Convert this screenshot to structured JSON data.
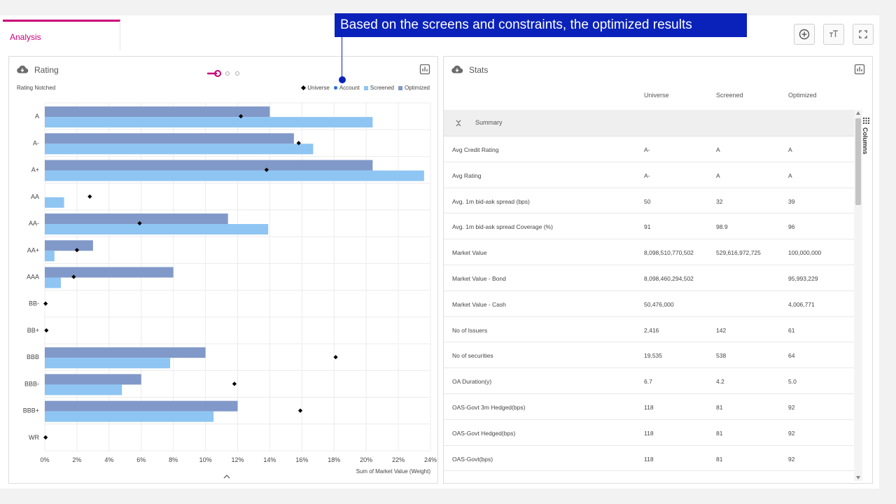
{
  "tab": {
    "label": "Analysis"
  },
  "callout": {
    "text": "Based on the screens and constraints, the optimized results"
  },
  "toolbar": {
    "icons": [
      "plus-circle-icon",
      "text-size-icon",
      "fullscreen-icon"
    ]
  },
  "colors": {
    "accent": "#c8007a",
    "callout": "#0a22b9",
    "optimized": "#8199c9",
    "screened": "#8ec5f3"
  },
  "rating_panel": {
    "title": "Rating",
    "subtitle": "Rating Notched",
    "legend": [
      "Universe",
      "Account",
      "Screened",
      "Optimized"
    ]
  },
  "chart_data": {
    "type": "bar",
    "orientation": "horizontal",
    "categories": [
      "A",
      "A-",
      "A+",
      "AA",
      "AA-",
      "AA+",
      "AAA",
      "BB-",
      "BB+",
      "BBB",
      "BBB-",
      "BBB+",
      "WR"
    ],
    "series": [
      {
        "name": "Optimized",
        "values": [
          14.0,
          15.5,
          20.4,
          0,
          11.4,
          3.0,
          8.0,
          0,
          0,
          10.0,
          6.0,
          12.0,
          0
        ]
      },
      {
        "name": "Screened",
        "values": [
          20.4,
          16.7,
          23.6,
          1.2,
          13.9,
          0.6,
          1.0,
          0,
          0,
          7.8,
          4.8,
          10.5,
          0
        ]
      },
      {
        "name": "Universe",
        "values": [
          12.2,
          15.8,
          13.8,
          2.8,
          5.9,
          2.0,
          1.8,
          0.05,
          0.1,
          18.1,
          11.8,
          15.9,
          0.05
        ]
      }
    ],
    "x_ticks": [
      "0%",
      "2%",
      "4%",
      "6%",
      "8%",
      "10%",
      "12%",
      "14%",
      "16%",
      "18%",
      "20%",
      "22%",
      "24%"
    ],
    "xlim": [
      0,
      24
    ],
    "xlabel": "Sum of Market Value (Weight)",
    "grid": true,
    "legend_position": "top-right"
  },
  "stats_panel": {
    "title": "Stats",
    "columns": [
      "Universe",
      "Screened",
      "Optimized"
    ],
    "group_label": "Summary",
    "side_label": "Columns",
    "rows": [
      {
        "label": "Avg Credit Rating",
        "universe": "A-",
        "screened": "A",
        "optimized": "A"
      },
      {
        "label": "Avg Rating",
        "universe": "A-",
        "screened": "A",
        "optimized": "A"
      },
      {
        "label": "Avg. 1m bid-ask spread (bps)",
        "universe": "50",
        "screened": "32",
        "optimized": "39"
      },
      {
        "label": "Avg. 1m bid-ask spread Coverage (%)",
        "universe": "91",
        "screened": "98.9",
        "optimized": "96"
      },
      {
        "label": "Market Value",
        "universe": "8,098,510,770,502",
        "screened": "529,616,972,725",
        "optimized": "100,000,000"
      },
      {
        "label": "Market Value - Bond",
        "universe": "8,098,460,294,502",
        "screened": "",
        "optimized": "95,993,229"
      },
      {
        "label": "Market Value - Cash",
        "universe": "50,476,000",
        "screened": "",
        "optimized": "4,006,771"
      },
      {
        "label": "No of Issuers",
        "universe": "2,416",
        "screened": "142",
        "optimized": "61"
      },
      {
        "label": "No of securities",
        "universe": "19,535",
        "screened": "538",
        "optimized": "64"
      },
      {
        "label": "OA Duration(y)",
        "universe": "6.7",
        "screened": "4.2",
        "optimized": "5.0"
      },
      {
        "label": "OAS-Govt 3m Hedged(bps)",
        "universe": "118",
        "screened": "81",
        "optimized": "92"
      },
      {
        "label": "OAS-Govt Hedged(bps)",
        "universe": "118",
        "screened": "81",
        "optimized": "92"
      },
      {
        "label": "OAS-Govt(bps)",
        "universe": "118",
        "screened": "81",
        "optimized": "92"
      }
    ]
  }
}
